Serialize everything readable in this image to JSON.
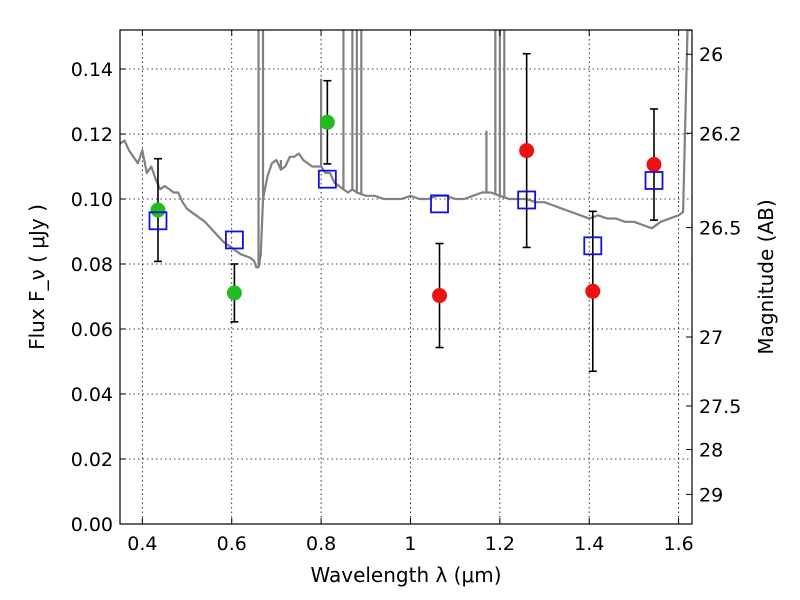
{
  "chart_data": {
    "type": "scatter",
    "xlabel": "Wavelength  λ (μm)",
    "ylabel": "Flux  F_ν  ( μJy )",
    "ylabel_right": "Magnitude (AB)",
    "xlim": [
      0.35,
      1.63
    ],
    "ylim": [
      0.0,
      0.152
    ],
    "grid": true,
    "x_ticks": [
      0.4,
      0.6,
      0.8,
      1.0,
      1.2,
      1.4,
      1.6
    ],
    "x_tick_labels": [
      "0.4",
      "0.6",
      "0.8",
      "1",
      "1.2",
      "1.4",
      "1.6"
    ],
    "y_ticks": [
      0.0,
      0.02,
      0.04,
      0.06,
      0.08,
      0.1,
      0.12,
      0.14
    ],
    "y_tick_labels": [
      "0.00",
      "0.02",
      "0.04",
      "0.06",
      "0.08",
      "0.10",
      "0.12",
      "0.14"
    ],
    "right_ticks": [
      {
        "label": "26",
        "mag": 26.0
      },
      {
        "label": "26.2",
        "mag": 26.2
      },
      {
        "label": "26.5",
        "mag": 26.5
      },
      {
        "label": "27",
        "mag": 27.0
      },
      {
        "label": "27.5",
        "mag": 27.5
      },
      {
        "label": "28",
        "mag": 28.0
      },
      {
        "label": "29",
        "mag": 29.0
      }
    ],
    "colors": {
      "green": "#22bb22",
      "red": "#ee1111",
      "blue": "#1111dd",
      "model": "#808080",
      "error": "#000000"
    },
    "series": [
      {
        "marker": "circle",
        "color": "green",
        "points": [
          {
            "x": 0.435,
            "y": 0.0966,
            "err": 0.0158
          },
          {
            "x": 0.606,
            "y": 0.0711,
            "err": 0.0089
          },
          {
            "x": 0.814,
            "y": 0.1236,
            "err": 0.0128
          }
        ]
      },
      {
        "marker": "circle",
        "color": "red",
        "points": [
          {
            "x": 1.065,
            "y": 0.0703,
            "err": 0.016
          },
          {
            "x": 1.26,
            "y": 0.1149,
            "err": 0.0298
          },
          {
            "x": 1.408,
            "y": 0.0716,
            "err": 0.0246
          },
          {
            "x": 1.545,
            "y": 0.1106,
            "err": 0.0171
          }
        ]
      },
      {
        "marker": "open-square",
        "color": "blue",
        "points": [
          {
            "x": 0.435,
            "y": 0.0933
          },
          {
            "x": 0.606,
            "y": 0.0874
          },
          {
            "x": 0.814,
            "y": 0.1061
          },
          {
            "x": 1.065,
            "y": 0.0985
          },
          {
            "x": 1.26,
            "y": 0.0997
          },
          {
            "x": 1.408,
            "y": 0.0856
          },
          {
            "x": 1.545,
            "y": 0.1057
          }
        ]
      }
    ],
    "model_spectrum": {
      "color": "model",
      "x": [
        0.35,
        0.36,
        0.37,
        0.38,
        0.39,
        0.4,
        0.41,
        0.42,
        0.43,
        0.44,
        0.45,
        0.46,
        0.47,
        0.48,
        0.49,
        0.5,
        0.52,
        0.54,
        0.56,
        0.58,
        0.6,
        0.62,
        0.64,
        0.65,
        0.655,
        0.66,
        0.665,
        0.67,
        0.68,
        0.69,
        0.7,
        0.71,
        0.72,
        0.73,
        0.74,
        0.75,
        0.76,
        0.77,
        0.78,
        0.79,
        0.8,
        0.81,
        0.82,
        0.83,
        0.84,
        0.85,
        0.86,
        0.87,
        0.88,
        0.9,
        0.92,
        0.94,
        0.96,
        0.98,
        1.0,
        1.02,
        1.04,
        1.06,
        1.08,
        1.1,
        1.12,
        1.14,
        1.16,
        1.18,
        1.2,
        1.22,
        1.24,
        1.26,
        1.28,
        1.3,
        1.32,
        1.34,
        1.36,
        1.38,
        1.4,
        1.42,
        1.44,
        1.46,
        1.48,
        1.5,
        1.52,
        1.54,
        1.56,
        1.58,
        1.6,
        1.61,
        1.62,
        1.63
      ],
      "y": [
        0.117,
        0.118,
        0.115,
        0.113,
        0.111,
        0.115,
        0.108,
        0.11,
        0.106,
        0.103,
        0.104,
        0.103,
        0.102,
        0.102,
        0.099,
        0.097,
        0.095,
        0.093,
        0.09,
        0.087,
        0.085,
        0.083,
        0.082,
        0.081,
        0.079,
        0.079,
        0.083,
        0.1,
        0.107,
        0.111,
        0.112,
        0.109,
        0.11,
        0.113,
        0.113,
        0.114,
        0.112,
        0.111,
        0.11,
        0.11,
        0.11,
        0.108,
        0.108,
        0.105,
        0.104,
        0.103,
        0.102,
        0.103,
        0.102,
        0.101,
        0.101,
        0.1,
        0.1,
        0.1,
        0.101,
        0.1,
        0.1,
        0.101,
        0.101,
        0.1,
        0.1,
        0.101,
        0.102,
        0.102,
        0.101,
        0.1,
        0.1,
        0.1,
        0.099,
        0.099,
        0.098,
        0.097,
        0.096,
        0.095,
        0.094,
        0.095,
        0.094,
        0.094,
        0.093,
        0.093,
        0.092,
        0.091,
        0.093,
        0.094,
        0.095,
        0.096,
        0.152,
        0.152
      ],
      "spikes": [
        {
          "x": 0.66,
          "y": 0.152
        },
        {
          "x": 0.67,
          "y": 0.152
        },
        {
          "x": 0.71,
          "y": 0.112
        },
        {
          "x": 0.8,
          "y": 0.137
        },
        {
          "x": 0.85,
          "y": 0.152
        },
        {
          "x": 0.87,
          "y": 0.152
        },
        {
          "x": 0.88,
          "y": 0.152
        },
        {
          "x": 0.89,
          "y": 0.152
        },
        {
          "x": 1.17,
          "y": 0.121
        },
        {
          "x": 1.19,
          "y": 0.152
        },
        {
          "x": 1.2,
          "y": 0.152
        },
        {
          "x": 1.21,
          "y": 0.152
        }
      ]
    }
  }
}
